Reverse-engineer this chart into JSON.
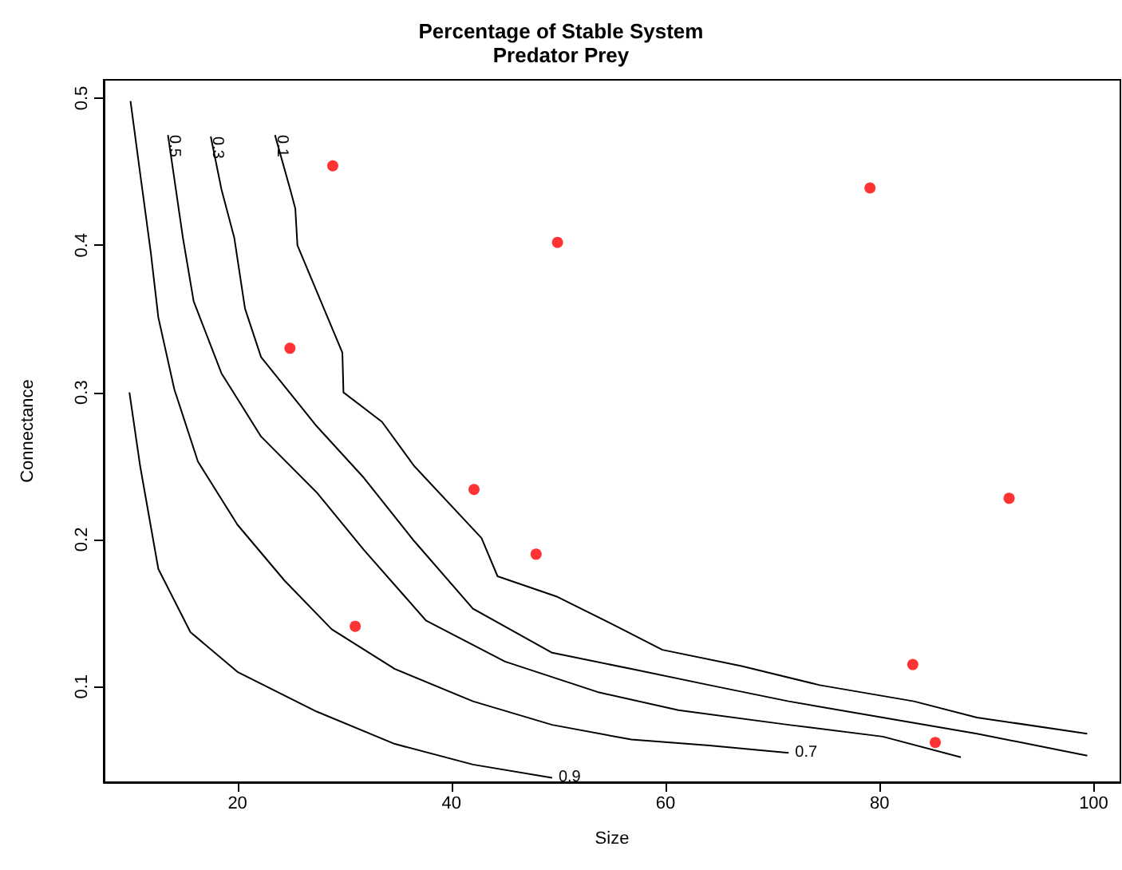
{
  "chart_data": {
    "type": "line",
    "title": "Percentage of Stable System",
    "subtitle": "Predator Prey",
    "xlabel": "Size",
    "ylabel": "Connectance",
    "xlim": [
      7.5,
      102.5
    ],
    "ylim": [
      0.035,
      0.5125
    ],
    "xticks": [
      20,
      40,
      60,
      80,
      100
    ],
    "yticks": [
      0.1,
      0.2,
      0.3,
      0.4,
      0.5
    ],
    "series": [
      {
        "name": "0.9",
        "color": "#000000",
        "x": [
          9.9,
          10.9,
          12.6,
          15.6,
          20,
          27.4,
          34.7,
          42,
          49.4
        ],
        "values": [
          0.3,
          0.25,
          0.18,
          0.137,
          0.11,
          0.083,
          0.061,
          0.047,
          0.038
        ]
      },
      {
        "name": "0.7",
        "color": "#000000",
        "x": [
          10,
          10.9,
          11.9,
          12.6,
          14.1,
          16.3,
          20,
          24.4,
          28.8,
          34.7,
          42,
          49.4,
          56.8,
          64.1,
          71.5
        ],
        "values": [
          0.498,
          0.449,
          0.395,
          0.351,
          0.302,
          0.253,
          0.21,
          0.172,
          0.139,
          0.112,
          0.09,
          0.074,
          0.064,
          0.06,
          0.055
        ]
      },
      {
        "name": "0.5",
        "color": "#000000",
        "x": [
          87.6,
          80.3,
          71.5,
          61.2,
          53.8,
          45,
          37.6,
          31.8,
          27.4,
          22.2,
          18.5,
          15.9,
          14.9,
          13.5
        ],
        "values": [
          0.052,
          0.066,
          0.074,
          0.084,
          0.096,
          0.117,
          0.145,
          0.193,
          0.232,
          0.27,
          0.313,
          0.362,
          0.405,
          0.475
        ]
      },
      {
        "name": "0.3",
        "color": "#000000",
        "x": [
          99.4,
          89.1,
          80.3,
          71.5,
          64.1,
          56.8,
          49.4,
          42,
          36.5,
          31.8,
          27.4,
          22.2,
          20.7,
          19.7,
          18.5,
          17.5
        ],
        "values": [
          0.053,
          0.068,
          0.079,
          0.09,
          0.101,
          0.112,
          0.123,
          0.153,
          0.199,
          0.242,
          0.277,
          0.324,
          0.357,
          0.405,
          0.438,
          0.474
        ]
      },
      {
        "name": "0.1",
        "color": "#000000",
        "x": [
          99.4,
          89.1,
          83.2,
          74.4,
          67.1,
          59.7,
          55.4,
          49.9,
          44.3,
          42.8,
          36.5,
          33.5,
          29.9,
          29.8,
          25.6,
          25.4,
          25,
          23.5
        ],
        "values": [
          0.068,
          0.079,
          0.09,
          0.101,
          0.114,
          0.125,
          0.141,
          0.161,
          0.175,
          0.201,
          0.25,
          0.28,
          0.3,
          0.327,
          0.4,
          0.425,
          0.436,
          0.475
        ]
      },
      {
        "type": "scatter",
        "color": "#ff0000",
        "marker": "circle",
        "x": [
          28.9,
          49.9,
          79.1,
          24.9,
          42.1,
          47.9,
          92.1,
          31,
          83.1,
          85.2
        ],
        "values": [
          0.454,
          0.402,
          0.439,
          0.33,
          0.234,
          0.19,
          0.228,
          0.141,
          0.115,
          0.062
        ]
      }
    ]
  }
}
